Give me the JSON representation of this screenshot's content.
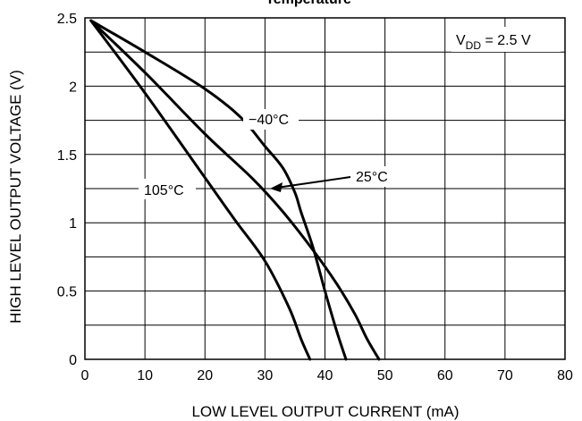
{
  "chart_data": {
    "type": "line",
    "title": "Temperature",
    "xlabel": "LOW LEVEL OUTPUT CURRENT (mA)",
    "ylabel": "HIGH LEVEL OUTPUT VOLTAGE (V)",
    "xlim": [
      0,
      80
    ],
    "ylim": [
      0,
      2.5
    ],
    "x_ticks": [
      "0",
      "10",
      "20",
      "30",
      "40",
      "50",
      "60",
      "70",
      "80"
    ],
    "y_ticks": [
      "0",
      "0.5",
      "1",
      "1.5",
      "2",
      "2.5"
    ],
    "grid": true,
    "annotation": {
      "prefix": "V",
      "subscript": "DD",
      "suffix": " = 2.5 V"
    },
    "series": [
      {
        "name": "−40°C",
        "x": [
          1,
          10,
          20,
          26,
          30,
          33,
          35,
          36,
          38,
          40,
          42,
          43.5
        ],
        "y": [
          2.48,
          2.25,
          1.98,
          1.77,
          1.56,
          1.4,
          1.22,
          1.08,
          0.82,
          0.5,
          0.2,
          0.0
        ]
      },
      {
        "name": "25°C",
        "x": [
          1,
          10,
          20,
          28,
          33,
          38,
          42,
          45,
          47,
          49
        ],
        "y": [
          2.48,
          2.1,
          1.65,
          1.32,
          1.08,
          0.8,
          0.55,
          0.33,
          0.15,
          0.0
        ]
      },
      {
        "name": "105°C",
        "x": [
          1,
          10,
          20,
          25,
          30,
          34,
          36,
          37.5
        ],
        "y": [
          2.48,
          1.95,
          1.33,
          1.02,
          0.72,
          0.38,
          0.15,
          0.0
        ]
      }
    ],
    "curve_labels": [
      "−40°C",
      "25°C",
      "105°C"
    ]
  }
}
